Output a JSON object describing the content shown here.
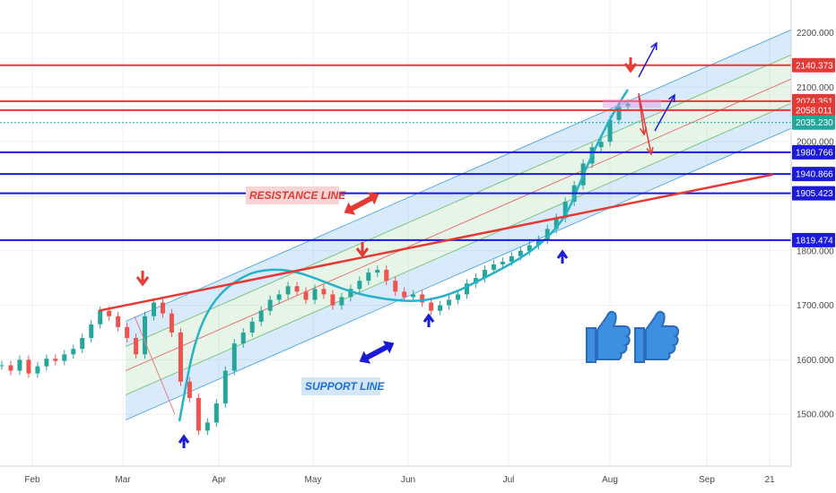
{
  "chart_data": {
    "type": "line",
    "title": "",
    "xlabel": "",
    "ylabel": "",
    "x_ticks": [
      "Feb",
      "Mar",
      "Apr",
      "May",
      "Jun",
      "Jul",
      "Aug",
      "Sep",
      "21"
    ],
    "y_ticks": [
      "1500.000",
      "1600.000",
      "1700.000",
      "1800.000",
      "1900.000",
      "2000.000",
      "2100.000",
      "2200.000"
    ],
    "y_tick_values": [
      1500,
      1600,
      1700,
      1800,
      1900,
      2000,
      2100,
      2200
    ],
    "ylim": [
      1405,
      2260
    ],
    "series": [
      {
        "values": [
          1590,
          1580,
          1600,
          1575,
          1588,
          1602,
          1598,
          1610,
          1620,
          1640,
          1665,
          1690,
          1680,
          1660,
          1640,
          1610,
          1680,
          1705,
          1685,
          1650,
          1560,
          1530,
          1470,
          1485,
          1520,
          1580,
          1630,
          1650,
          1670,
          1690,
          1710,
          1720,
          1735,
          1725,
          1710,
          1730,
          1720,
          1700,
          1715,
          1730,
          1745,
          1760,
          1765,
          1745,
          1725,
          1715,
          1720,
          1705,
          1690,
          1700,
          1710,
          1720,
          1740,
          1750,
          1765,
          1775,
          1780,
          1790,
          1800,
          1810,
          1820,
          1840,
          1860,
          1890,
          1920,
          1960,
          1990,
          2000,
          2040,
          2065,
          2070
        ]
      }
    ],
    "horizontal_levels": [
      {
        "value": 2140.373,
        "label": "2140.373",
        "color": "#e53935"
      },
      {
        "value": 2074.351,
        "label": "2074.351",
        "color": "#e53935"
      },
      {
        "value": 2058.011,
        "label": "2058.011",
        "color": "#e53935"
      },
      {
        "value": 2035.23,
        "label": "2035.230",
        "color": "#26a69a"
      },
      {
        "value": 1980.766,
        "label": "1980.766",
        "color": "#1a1ad8"
      },
      {
        "value": 1940.866,
        "label": "1940.866",
        "color": "#1a1ad8"
      },
      {
        "value": 1905.423,
        "label": "1905.423",
        "color": "#1a1ad8"
      },
      {
        "value": 1819.474,
        "label": "1819.474",
        "color": "#1a1ad8"
      }
    ],
    "annotations": {
      "resistance": "RESISTANCE LINE",
      "support": "SUPPORT LINE"
    },
    "colors": {
      "up": "#26a69a",
      "down": "#ef5350",
      "resistance": "#e53935",
      "support": "#1a1ad8",
      "channel": "#5aa9e6",
      "curve": "#26b3c9"
    },
    "grid": true
  }
}
